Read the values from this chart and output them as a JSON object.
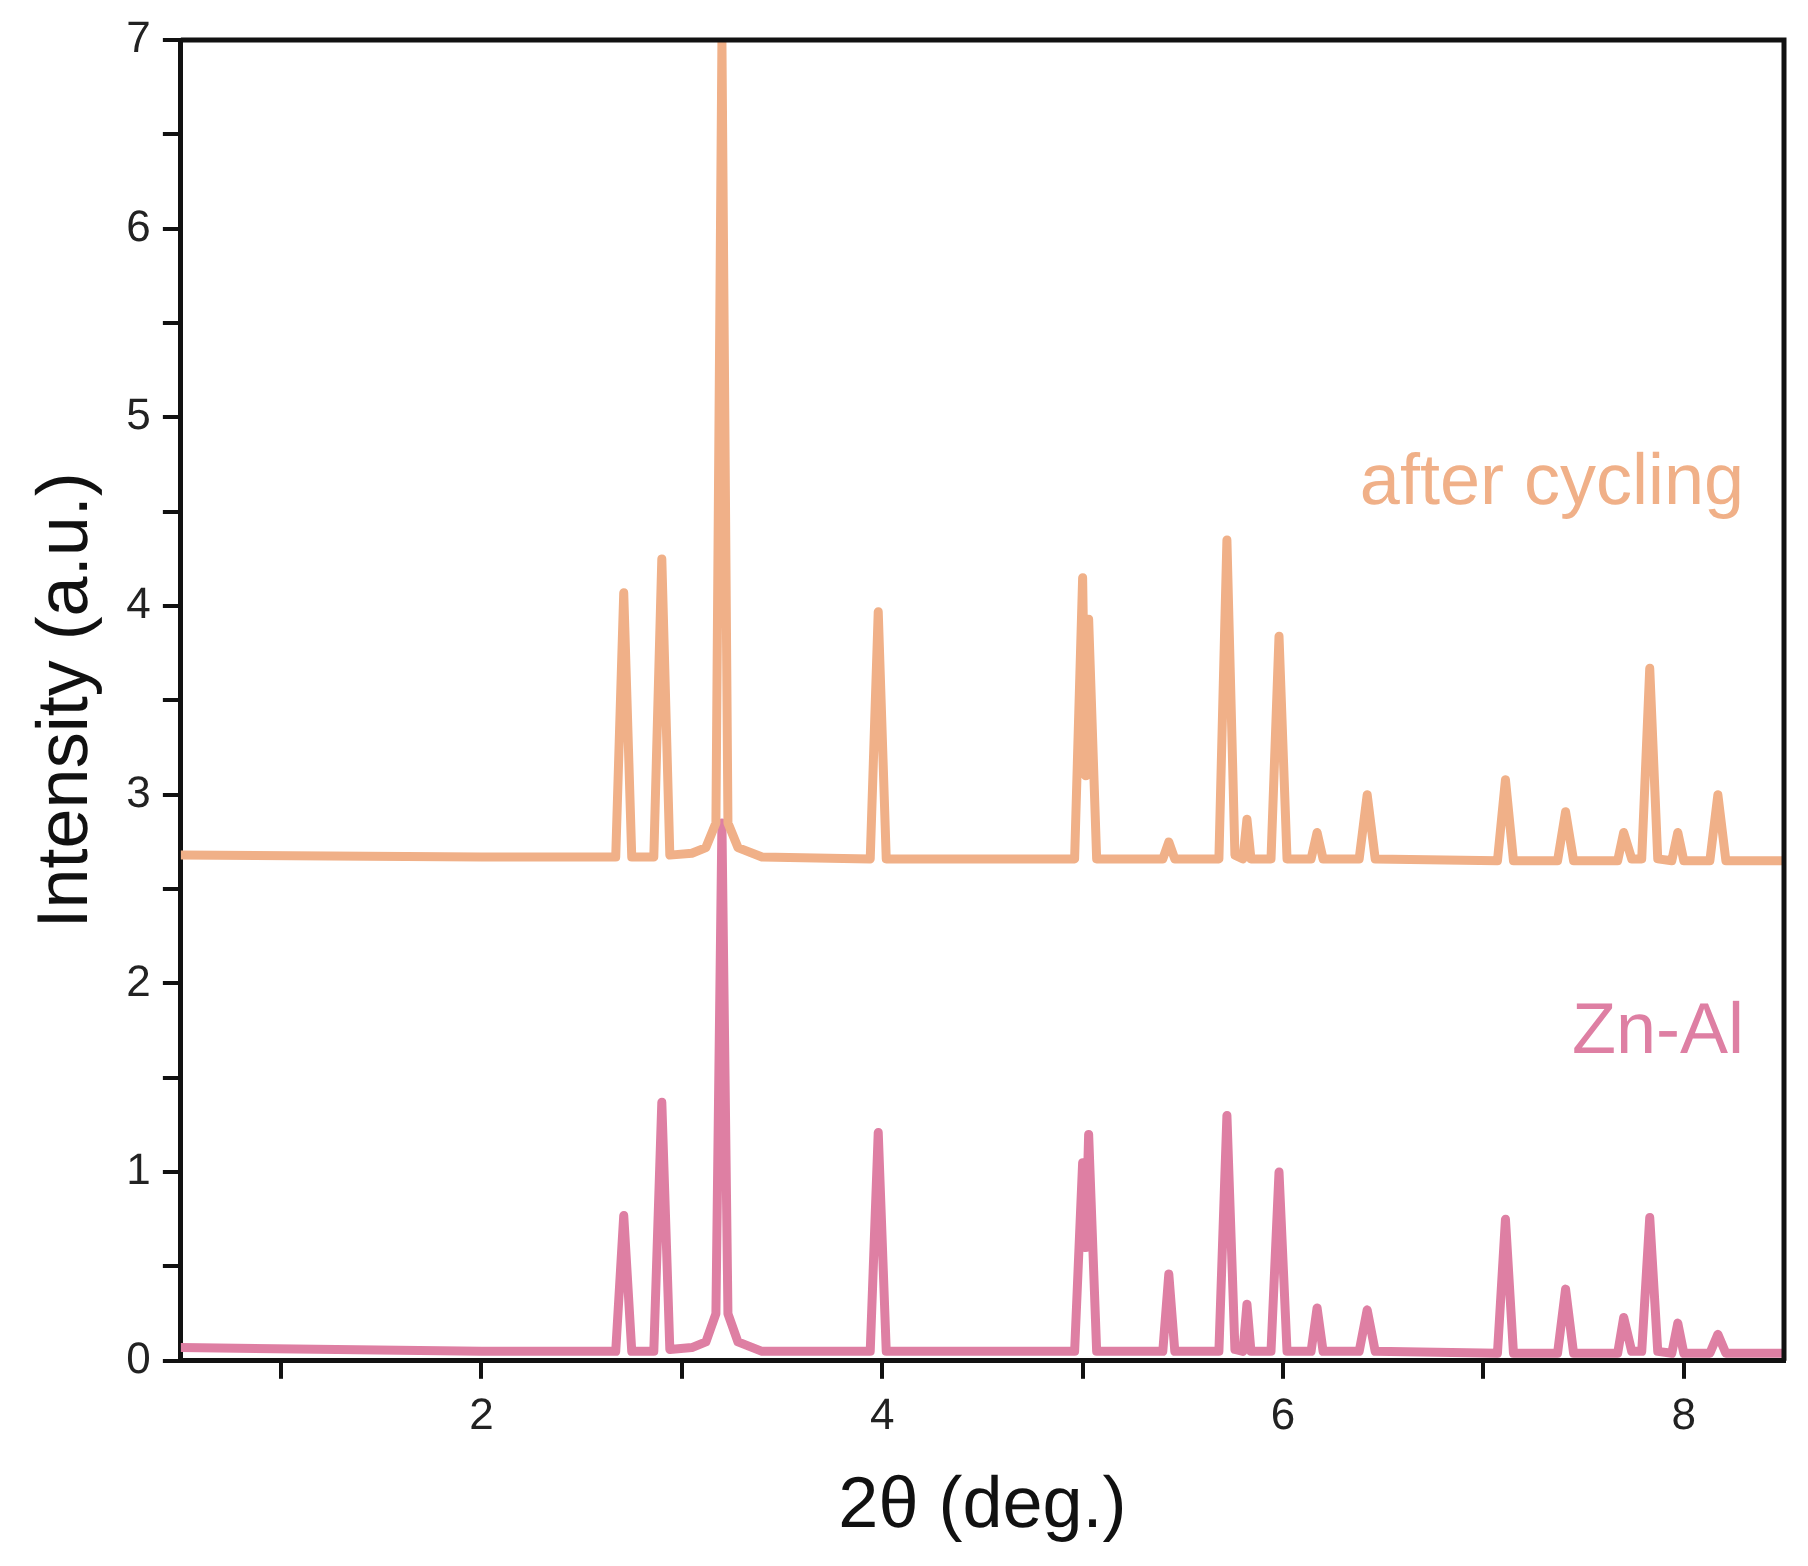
{
  "chart_data": {
    "type": "line",
    "xlabel": "2θ (deg.)",
    "ylabel": "Intensity (a.u.)",
    "xlim": [
      0.5,
      8.5
    ],
    "xticks": [
      {
        "value": 1,
        "label": null
      },
      2,
      {
        "value": 3,
        "label": null
      },
      4,
      {
        "value": 5,
        "label": null
      },
      6,
      {
        "value": 7,
        "label": null
      },
      8
    ],
    "ylim": [
      0,
      7
    ],
    "yticks": [
      0,
      {
        "value": 0.5,
        "label": null
      },
      1,
      {
        "value": 1.5,
        "label": null
      },
      2,
      {
        "value": 2.5,
        "label": null
      },
      3,
      {
        "value": 3.5,
        "label": null
      },
      4,
      {
        "value": 4.5,
        "label": null
      },
      5,
      {
        "value": 5.5,
        "label": null
      },
      6,
      {
        "value": 6.5,
        "label": null
      },
      7
    ],
    "grid": false,
    "legend": false,
    "marker": "none",
    "line_style": "solid",
    "series": [
      {
        "name": "after cycling",
        "color": "#f0b088",
        "x": [
          0.5,
          2.0,
          2.67,
          2.71,
          2.75,
          2.86,
          2.9,
          2.94,
          3.05,
          3.12,
          3.17,
          3.2,
          3.23,
          3.28,
          3.4,
          3.94,
          3.98,
          4.02,
          4.96,
          5.0,
          5.015,
          5.03,
          5.07,
          5.4,
          5.43,
          5.46,
          5.68,
          5.72,
          5.76,
          5.8,
          5.82,
          5.84,
          5.94,
          5.98,
          6.02,
          6.14,
          6.17,
          6.2,
          6.38,
          6.42,
          6.46,
          7.07,
          7.11,
          7.15,
          7.37,
          7.41,
          7.45,
          7.67,
          7.7,
          7.74,
          7.79,
          7.83,
          7.87,
          7.94,
          7.97,
          8.0,
          8.13,
          8.17,
          8.21,
          8.5
        ],
        "values": [
          2.68,
          2.67,
          2.67,
          4.07,
          2.67,
          2.67,
          4.25,
          2.68,
          2.69,
          2.72,
          2.85,
          7.0,
          2.85,
          2.72,
          2.67,
          2.66,
          3.97,
          2.66,
          2.66,
          4.15,
          3.1,
          3.93,
          2.66,
          2.66,
          2.75,
          2.66,
          2.66,
          4.35,
          2.68,
          2.66,
          2.87,
          2.66,
          2.66,
          3.84,
          2.66,
          2.66,
          2.8,
          2.66,
          2.66,
          3.0,
          2.66,
          2.65,
          3.08,
          2.65,
          2.65,
          2.91,
          2.65,
          2.65,
          2.8,
          2.66,
          2.66,
          3.67,
          2.66,
          2.65,
          2.8,
          2.65,
          2.65,
          3.0,
          2.65,
          2.65
        ]
      },
      {
        "name": "Zn-Al",
        "color": "#de7fa3",
        "x": [
          0.5,
          2.0,
          2.67,
          2.71,
          2.75,
          2.86,
          2.9,
          2.94,
          3.05,
          3.12,
          3.17,
          3.2,
          3.23,
          3.28,
          3.4,
          3.94,
          3.98,
          4.02,
          4.96,
          5.0,
          5.015,
          5.03,
          5.07,
          5.4,
          5.43,
          5.46,
          5.68,
          5.72,
          5.76,
          5.8,
          5.82,
          5.84,
          5.94,
          5.98,
          6.02,
          6.14,
          6.17,
          6.2,
          6.38,
          6.42,
          6.46,
          7.07,
          7.11,
          7.15,
          7.37,
          7.41,
          7.45,
          7.67,
          7.7,
          7.74,
          7.79,
          7.83,
          7.87,
          7.94,
          7.97,
          8.0,
          8.13,
          8.17,
          8.21,
          8.5
        ],
        "values": [
          0.07,
          0.05,
          0.05,
          0.77,
          0.05,
          0.05,
          1.37,
          0.06,
          0.07,
          0.1,
          0.25,
          2.85,
          0.25,
          0.1,
          0.05,
          0.05,
          1.21,
          0.05,
          0.05,
          1.05,
          0.6,
          1.2,
          0.05,
          0.05,
          0.46,
          0.05,
          0.05,
          1.3,
          0.06,
          0.05,
          0.3,
          0.05,
          0.05,
          1.0,
          0.05,
          0.05,
          0.28,
          0.05,
          0.05,
          0.27,
          0.05,
          0.04,
          0.75,
          0.04,
          0.04,
          0.38,
          0.04,
          0.04,
          0.23,
          0.05,
          0.05,
          0.76,
          0.05,
          0.04,
          0.2,
          0.04,
          0.04,
          0.14,
          0.04,
          0.04
        ]
      }
    ]
  }
}
